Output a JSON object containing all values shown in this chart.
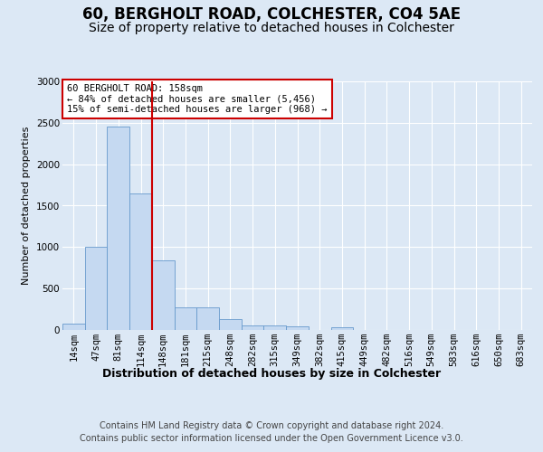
{
  "title1": "60, BERGHOLT ROAD, COLCHESTER, CO4 5AE",
  "title2": "Size of property relative to detached houses in Colchester",
  "xlabel": "Distribution of detached houses by size in Colchester",
  "ylabel": "Number of detached properties",
  "footer1": "Contains HM Land Registry data © Crown copyright and database right 2024.",
  "footer2": "Contains public sector information licensed under the Open Government Licence v3.0.",
  "categories": [
    "14sqm",
    "47sqm",
    "81sqm",
    "114sqm",
    "148sqm",
    "181sqm",
    "215sqm",
    "248sqm",
    "282sqm",
    "315sqm",
    "349sqm",
    "382sqm",
    "415sqm",
    "449sqm",
    "482sqm",
    "516sqm",
    "549sqm",
    "583sqm",
    "616sqm",
    "650sqm",
    "683sqm"
  ],
  "values": [
    75,
    1000,
    2450,
    1650,
    840,
    270,
    270,
    130,
    60,
    50,
    40,
    0,
    35,
    0,
    0,
    0,
    0,
    0,
    0,
    0,
    0
  ],
  "bar_color": "#c5d9f1",
  "bar_edge_color": "#6699cc",
  "vline_x_index": 4,
  "vline_color": "#cc0000",
  "annotation_text": "60 BERGHOLT ROAD: 158sqm\n← 84% of detached houses are smaller (5,456)\n15% of semi-detached houses are larger (968) →",
  "annotation_box_color": "#ffffff",
  "annotation_box_edge": "#cc0000",
  "ylim": [
    0,
    3000
  ],
  "yticks": [
    0,
    500,
    1000,
    1500,
    2000,
    2500,
    3000
  ],
  "background_color": "#dce8f5",
  "plot_background": "#dce8f5",
  "grid_color": "#ffffff",
  "title1_fontsize": 12,
  "title2_fontsize": 10,
  "xlabel_fontsize": 9,
  "ylabel_fontsize": 8,
  "tick_fontsize": 7.5,
  "footer_fontsize": 7
}
